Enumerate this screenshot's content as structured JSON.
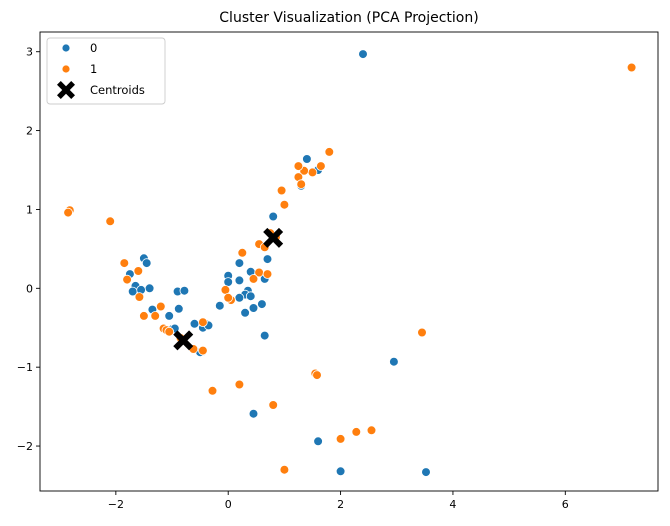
{
  "chart_data": {
    "type": "scatter",
    "title": "Cluster Visualization (PCA Projection)",
    "xlabel": "",
    "ylabel": "",
    "xlim": [
      -3.35,
      7.65
    ],
    "ylim": [
      -2.57,
      3.25
    ],
    "xticks": [
      -2,
      0,
      2,
      4,
      6
    ],
    "yticks": [
      -2,
      -1,
      0,
      1,
      2,
      3
    ],
    "grid": false,
    "legend_position": "top-left",
    "series": [
      {
        "name": "0",
        "color": "#1f77b4",
        "points": [
          [
            2.4,
            2.97
          ],
          [
            1.4,
            1.64
          ],
          [
            1.6,
            1.5
          ],
          [
            1.3,
            1.3
          ],
          [
            0.8,
            0.91
          ],
          [
            0.7,
            0.37
          ],
          [
            0.2,
            0.32
          ],
          [
            0.0,
            0.16
          ],
          [
            0.4,
            0.21
          ],
          [
            0.65,
            0.12
          ],
          [
            0.2,
            0.1
          ],
          [
            0.0,
            0.08
          ],
          [
            0.35,
            -0.03
          ],
          [
            0.3,
            -0.08
          ],
          [
            0.2,
            -0.12
          ],
          [
            0.4,
            -0.1
          ],
          [
            0.6,
            -0.2
          ],
          [
            0.3,
            -0.31
          ],
          [
            0.45,
            -0.25
          ],
          [
            -0.15,
            -0.22
          ],
          [
            0.65,
            -0.6
          ],
          [
            -1.5,
            0.38
          ],
          [
            -1.45,
            0.32
          ],
          [
            -1.75,
            0.18
          ],
          [
            -1.65,
            0.03
          ],
          [
            -1.7,
            -0.04
          ],
          [
            -1.55,
            -0.02
          ],
          [
            -1.4,
            0.0
          ],
          [
            -0.9,
            -0.04
          ],
          [
            -0.78,
            -0.03
          ],
          [
            -1.35,
            -0.27
          ],
          [
            -1.05,
            -0.35
          ],
          [
            -0.88,
            -0.26
          ],
          [
            -0.6,
            -0.45
          ],
          [
            -0.4,
            -0.45
          ],
          [
            -0.45,
            -0.5
          ],
          [
            -0.35,
            -0.47
          ],
          [
            -1.0,
            -0.52
          ],
          [
            -0.95,
            -0.51
          ],
          [
            -0.45,
            -0.8
          ],
          [
            -0.5,
            -0.81
          ],
          [
            0.45,
            -1.59
          ],
          [
            1.6,
            -1.94
          ],
          [
            2.0,
            -2.32
          ],
          [
            3.52,
            -2.33
          ],
          [
            2.95,
            -0.93
          ]
        ]
      },
      {
        "name": "1",
        "color": "#ff7f0e",
        "points": [
          [
            7.18,
            2.8
          ],
          [
            1.8,
            1.73
          ],
          [
            1.65,
            1.55
          ],
          [
            1.5,
            1.47
          ],
          [
            1.35,
            1.49
          ],
          [
            1.25,
            1.55
          ],
          [
            1.25,
            1.41
          ],
          [
            1.3,
            1.32
          ],
          [
            0.95,
            1.24
          ],
          [
            1.0,
            1.06
          ],
          [
            0.85,
            0.65
          ],
          [
            0.25,
            0.45
          ],
          [
            0.55,
            0.56
          ],
          [
            0.75,
            0.7
          ],
          [
            0.65,
            0.52
          ],
          [
            0.55,
            0.2
          ],
          [
            0.45,
            0.12
          ],
          [
            0.7,
            0.18
          ],
          [
            -0.05,
            -0.02
          ],
          [
            0.05,
            -0.15
          ],
          [
            0.0,
            -0.12
          ],
          [
            -2.82,
            0.99
          ],
          [
            -2.85,
            0.96
          ],
          [
            -2.1,
            0.85
          ],
          [
            -1.85,
            0.32
          ],
          [
            -1.8,
            0.11
          ],
          [
            -1.6,
            0.22
          ],
          [
            -1.58,
            -0.11
          ],
          [
            -1.3,
            -0.35
          ],
          [
            -1.5,
            -0.35
          ],
          [
            -1.2,
            -0.23
          ],
          [
            -1.15,
            -0.51
          ],
          [
            -1.1,
            -0.53
          ],
          [
            -1.05,
            -0.55
          ],
          [
            -0.85,
            -0.63
          ],
          [
            -0.62,
            -0.77
          ],
          [
            -0.45,
            -0.79
          ],
          [
            -0.28,
            -1.3
          ],
          [
            0.2,
            -1.22
          ],
          [
            0.8,
            -1.48
          ],
          [
            1.55,
            -1.08
          ],
          [
            1.58,
            -1.1
          ],
          [
            3.45,
            -0.56
          ],
          [
            2.55,
            -1.8
          ],
          [
            2.28,
            -1.82
          ],
          [
            2.0,
            -1.91
          ],
          [
            1.0,
            -2.3
          ],
          [
            -0.45,
            -0.43
          ]
        ]
      }
    ],
    "centroids": {
      "name": "Centroids",
      "color": "#000000",
      "marker": "X",
      "points": [
        [
          0.8,
          0.64
        ],
        [
          -0.8,
          -0.66
        ]
      ]
    }
  }
}
